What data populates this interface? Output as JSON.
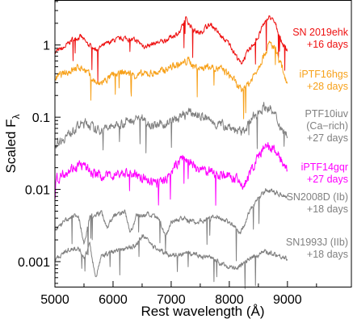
{
  "chart_data": {
    "type": "line",
    "xlabel": "Rest wavelength (Å)",
    "ylabel": "Scaled F",
    "ylabel_subscript": "λ",
    "x_ticks": [
      5000,
      6000,
      7000,
      8000,
      9000
    ],
    "y_ticks": [
      0.001,
      0.01,
      0.1,
      1
    ],
    "y_tick_labels": [
      "0.001",
      "0.01",
      "0.1",
      "1"
    ],
    "xlim": [
      5000,
      10100
    ],
    "ylim": [
      0.00045,
      4.2
    ],
    "y_scale": "log",
    "grid": false,
    "series": [
      {
        "label_lines": [
          "SN 2019ehk",
          "+16 days"
        ],
        "color": "#ee1111",
        "noise": 0.06,
        "points": [
          [
            5000,
            0.8
          ],
          [
            5150,
            0.9
          ],
          [
            5300,
            1.2
          ],
          [
            5450,
            1.3
          ],
          [
            5550,
            1.05
          ],
          [
            5700,
            0.85
          ],
          [
            5800,
            0.95
          ],
          [
            6000,
            1.15
          ],
          [
            6200,
            1.25
          ],
          [
            6400,
            1.15
          ],
          [
            6550,
            0.95
          ],
          [
            6700,
            1.05
          ],
          [
            6800,
            1.1
          ],
          [
            6900,
            1.15
          ],
          [
            7000,
            1.3
          ],
          [
            7150,
            1.5
          ],
          [
            7250,
            2.3
          ],
          [
            7320,
            1.9
          ],
          [
            7400,
            1.6
          ],
          [
            7500,
            1.45
          ],
          [
            7600,
            1.8
          ],
          [
            7700,
            1.9
          ],
          [
            7800,
            1.5
          ],
          [
            7900,
            1.2
          ],
          [
            8000,
            1.05
          ],
          [
            8100,
            0.75
          ],
          [
            8200,
            0.55
          ],
          [
            8300,
            0.75
          ],
          [
            8400,
            1.0
          ],
          [
            8500,
            1.3
          ],
          [
            8600,
            2.0
          ],
          [
            8700,
            2.45
          ],
          [
            8800,
            1.9
          ],
          [
            8900,
            1.1
          ],
          [
            9000,
            0.8
          ]
        ]
      },
      {
        "label_lines": [
          "iPTF16hgs",
          "+28 days"
        ],
        "color": "#f7a11a",
        "noise": 0.09,
        "points": [
          [
            5000,
            0.35
          ],
          [
            5150,
            0.4
          ],
          [
            5300,
            0.45
          ],
          [
            5450,
            0.5
          ],
          [
            5550,
            0.42
          ],
          [
            5650,
            0.33
          ],
          [
            5750,
            0.28
          ],
          [
            5850,
            0.32
          ],
          [
            6000,
            0.38
          ],
          [
            6200,
            0.42
          ],
          [
            6400,
            0.38
          ],
          [
            6600,
            0.4
          ],
          [
            6800,
            0.42
          ],
          [
            7000,
            0.5
          ],
          [
            7200,
            0.55
          ],
          [
            7300,
            0.62
          ],
          [
            7400,
            0.5
          ],
          [
            7500,
            0.48
          ],
          [
            7700,
            0.5
          ],
          [
            7900,
            0.45
          ],
          [
            8050,
            0.35
          ],
          [
            8200,
            0.23
          ],
          [
            8350,
            0.3
          ],
          [
            8500,
            0.5
          ],
          [
            8600,
            0.75
          ],
          [
            8700,
            1.05
          ],
          [
            8800,
            0.85
          ],
          [
            8900,
            0.5
          ],
          [
            9000,
            0.3
          ]
        ]
      },
      {
        "label_lines": [
          "PTF10iuv",
          "(Ca−rich)",
          "+27 days"
        ],
        "color": "#808080",
        "noise": 0.11,
        "points": [
          [
            5000,
            0.042
          ],
          [
            5200,
            0.055
          ],
          [
            5400,
            0.075
          ],
          [
            5550,
            0.085
          ],
          [
            5700,
            0.065
          ],
          [
            5900,
            0.07
          ],
          [
            6100,
            0.08
          ],
          [
            6300,
            0.09
          ],
          [
            6500,
            0.1
          ],
          [
            6700,
            0.075
          ],
          [
            6900,
            0.08
          ],
          [
            7100,
            0.095
          ],
          [
            7300,
            0.115
          ],
          [
            7450,
            0.11
          ],
          [
            7600,
            0.095
          ],
          [
            7800,
            0.08
          ],
          [
            8000,
            0.075
          ],
          [
            8200,
            0.06
          ],
          [
            8350,
            0.085
          ],
          [
            8500,
            0.12
          ],
          [
            8600,
            0.14
          ],
          [
            8700,
            0.13
          ],
          [
            8800,
            0.1
          ],
          [
            8900,
            0.07
          ],
          [
            9000,
            0.055
          ]
        ]
      },
      {
        "label_lines": [
          "iPTF14gqr",
          "+27 days"
        ],
        "color": "#ff00ff",
        "noise": 0.12,
        "points": [
          [
            5000,
            0.013
          ],
          [
            5150,
            0.017
          ],
          [
            5300,
            0.02
          ],
          [
            5450,
            0.022
          ],
          [
            5600,
            0.018
          ],
          [
            5800,
            0.015
          ],
          [
            6000,
            0.016
          ],
          [
            6200,
            0.017
          ],
          [
            6400,
            0.016
          ],
          [
            6600,
            0.013
          ],
          [
            6800,
            0.012
          ],
          [
            6950,
            0.015
          ],
          [
            7100,
            0.022
          ],
          [
            7200,
            0.028
          ],
          [
            7300,
            0.024
          ],
          [
            7500,
            0.019
          ],
          [
            7700,
            0.017
          ],
          [
            7900,
            0.016
          ],
          [
            8100,
            0.014
          ],
          [
            8250,
            0.011
          ],
          [
            8400,
            0.02
          ],
          [
            8550,
            0.034
          ],
          [
            8650,
            0.038
          ],
          [
            8750,
            0.036
          ],
          [
            8850,
            0.03
          ],
          [
            8950,
            0.02
          ],
          [
            9000,
            0.017
          ]
        ]
      },
      {
        "label_lines": [
          "SN2008D (Ib)",
          "+18 days"
        ],
        "color": "#808080",
        "noise": 0.06,
        "points": [
          [
            5000,
            0.0028
          ],
          [
            5200,
            0.0038
          ],
          [
            5400,
            0.0045
          ],
          [
            5500,
            0.0018
          ],
          [
            5600,
            0.0042
          ],
          [
            5800,
            0.0048
          ],
          [
            5900,
            0.003
          ],
          [
            6000,
            0.0042
          ],
          [
            6200,
            0.005
          ],
          [
            6300,
            0.0025
          ],
          [
            6400,
            0.0042
          ],
          [
            6600,
            0.0045
          ],
          [
            6800,
            0.0038
          ],
          [
            6900,
            0.0022
          ],
          [
            7000,
            0.0036
          ],
          [
            7200,
            0.004
          ],
          [
            7400,
            0.0035
          ],
          [
            7600,
            0.0038
          ],
          [
            7800,
            0.0042
          ],
          [
            8000,
            0.0035
          ],
          [
            8200,
            0.0025
          ],
          [
            8350,
            0.005
          ],
          [
            8500,
            0.0075
          ],
          [
            8650,
            0.01
          ],
          [
            8800,
            0.009
          ],
          [
            9000,
            0.008
          ]
        ]
      },
      {
        "label_lines": [
          "SN1993J (IIb)",
          "+18 days"
        ],
        "color": "#808080",
        "noise": 0.06,
        "points": [
          [
            5000,
            0.0011
          ],
          [
            5200,
            0.0014
          ],
          [
            5400,
            0.0016
          ],
          [
            5500,
            0.0011
          ],
          [
            5600,
            0.0017
          ],
          [
            5700,
            0.0006
          ],
          [
            5800,
            0.0012
          ],
          [
            6000,
            0.0014
          ],
          [
            6200,
            0.0015
          ],
          [
            6400,
            0.0017
          ],
          [
            6500,
            0.0023
          ],
          [
            6700,
            0.0016
          ],
          [
            6900,
            0.0013
          ],
          [
            7100,
            0.0012
          ],
          [
            7300,
            0.0013
          ],
          [
            7500,
            0.0012
          ],
          [
            7700,
            0.0011
          ],
          [
            7900,
            0.0009
          ],
          [
            8100,
            0.0008
          ],
          [
            8300,
            0.001
          ],
          [
            8450,
            0.0012
          ],
          [
            8600,
            0.0014
          ],
          [
            8750,
            0.0013
          ],
          [
            9000,
            0.0011
          ]
        ]
      }
    ]
  }
}
